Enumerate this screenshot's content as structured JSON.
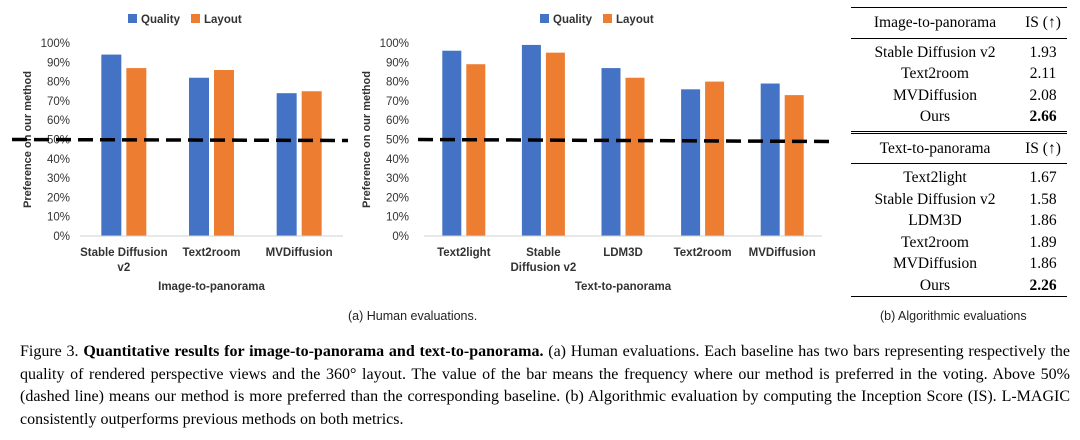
{
  "chart_data": [
    {
      "type": "bar",
      "title": "",
      "xlabel": "Image-to-panorama",
      "ylabel": "Preference on our method",
      "categories": [
        "Stable Diffusion v2",
        "Text2room",
        "MVDiffusion"
      ],
      "category_lines": [
        [
          "Stable Diffusion",
          "v2"
        ],
        [
          "Text2room"
        ],
        [
          "MVDiffusion"
        ]
      ],
      "series": [
        {
          "name": "Quality",
          "values": [
            94,
            82,
            74
          ],
          "color": "#4472C4"
        },
        {
          "name": "Layout",
          "values": [
            87,
            86,
            75
          ],
          "color": "#ED7D31"
        }
      ],
      "ylim": [
        0,
        100
      ],
      "yticks": [
        "0%",
        "10%",
        "20%",
        "30%",
        "40%",
        "50%",
        "60%",
        "70%",
        "80%",
        "90%",
        "100%"
      ],
      "reference_line": 50,
      "legend": "top"
    },
    {
      "type": "bar",
      "title": "",
      "xlabel": "Text-to-panorama",
      "ylabel": "Preference on our method",
      "categories": [
        "Text2light",
        "Stable Diffusion v2",
        "LDM3D",
        "Text2room",
        "MVDiffusion"
      ],
      "category_lines": [
        [
          "Text2light"
        ],
        [
          "Stable",
          "Diffusion v2"
        ],
        [
          "LDM3D"
        ],
        [
          "Text2room"
        ],
        [
          "MVDiffusion"
        ]
      ],
      "series": [
        {
          "name": "Quality",
          "values": [
            96,
            99,
            87,
            76,
            79
          ],
          "color": "#4472C4"
        },
        {
          "name": "Layout",
          "values": [
            89,
            95,
            82,
            80,
            73
          ],
          "color": "#ED7D31"
        }
      ],
      "ylim": [
        0,
        100
      ],
      "yticks": [
        "0%",
        "10%",
        "20%",
        "30%",
        "40%",
        "50%",
        "60%",
        "70%",
        "80%",
        "90%",
        "100%"
      ],
      "reference_line": 50,
      "legend": "top"
    }
  ],
  "captions": {
    "a": "(a) Human evaluations.",
    "b": "(b) Algorithmic evaluations"
  },
  "table": {
    "section1": {
      "header": "Image-to-panorama",
      "metric": "IS (↑)",
      "rows": [
        {
          "method": "Stable Diffusion v2",
          "value": "1.93"
        },
        {
          "method": "Text2room",
          "value": "2.11"
        },
        {
          "method": "MVDiffusion",
          "value": "2.08"
        },
        {
          "method": "Ours",
          "value": "2.66"
        }
      ]
    },
    "section2": {
      "header": "Text-to-panorama",
      "metric": "IS (↑)",
      "rows": [
        {
          "method": "Text2light",
          "value": "1.67"
        },
        {
          "method": "Stable Diffusion v2",
          "value": "1.58"
        },
        {
          "method": "LDM3D",
          "value": "1.86"
        },
        {
          "method": "Text2room",
          "value": "1.89"
        },
        {
          "method": "MVDiffusion",
          "value": "1.86"
        },
        {
          "method": "Ours",
          "value": "2.26"
        }
      ]
    }
  },
  "figure_caption": {
    "label": "Figure 3.",
    "title": "Quantitative results for image-to-panorama and text-to-panorama.",
    "body": "(a) Human evaluations. Each baseline has two bars representing respectively the quality of rendered perspective views and the 360° layout. The value of the bar means the frequency where our method is preferred in the voting. Above 50% (dashed line) means our method is more preferred than the corresponding baseline. (b) Algorithmic evaluation by computing the Inception Score (IS). L-MAGIC consistently outperforms previous methods on both metrics."
  }
}
